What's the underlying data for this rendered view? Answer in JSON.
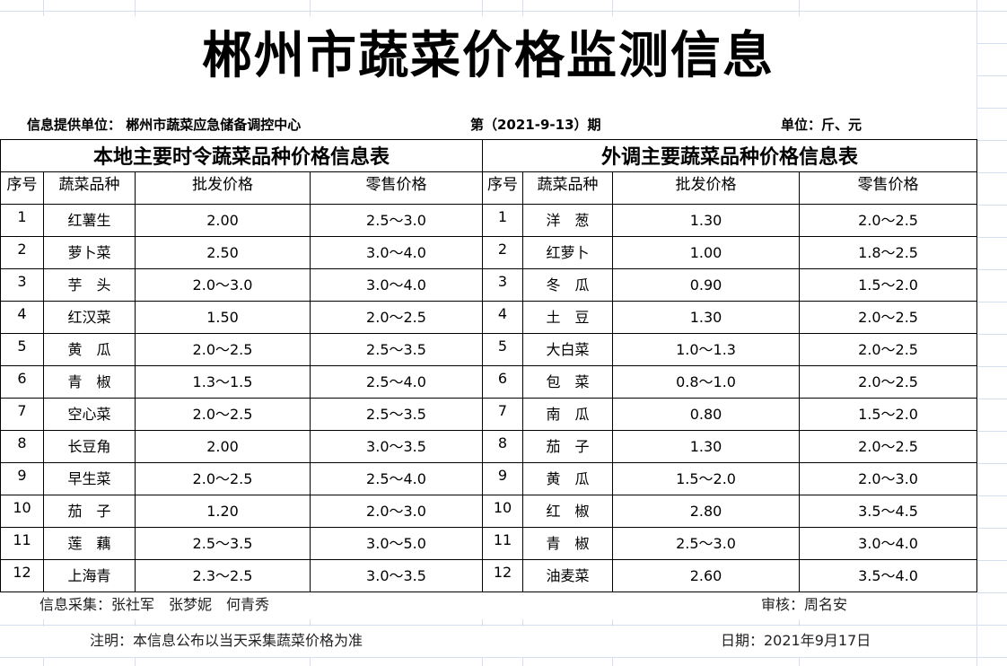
{
  "title": "郴州市蔬菜价格监测信息",
  "info": {
    "provider": "信息提供单位：  郴州市蔬菜应急储备调控中心",
    "period": "第（2021-9-13）期",
    "unit": "单位：斤、元"
  },
  "local": {
    "title": "本地主要时令蔬菜品种价格信息表",
    "headers": [
      "序号",
      "蔬菜品种",
      "批发价格",
      "零售价格"
    ],
    "rows": [
      [
        "1",
        "红薯生",
        "2.00",
        "2.5～3.0"
      ],
      [
        "2",
        "萝卜菜",
        "2.50",
        "3.0～4.0"
      ],
      [
        "3",
        "芋　头",
        "2.0～3.0",
        "3.0～4.0"
      ],
      [
        "4",
        "红汉菜",
        "1.50",
        "2.0～2.5"
      ],
      [
        "5",
        "黄　瓜",
        "2.0～2.5",
        "2.5～3.5"
      ],
      [
        "6",
        "青　椒",
        "1.3～1.5",
        "2.5～4.0"
      ],
      [
        "7",
        "空心菜",
        "2.0～2.5",
        "2.5～3.5"
      ],
      [
        "8",
        "长豆角",
        "2.00",
        "3.0～3.5"
      ],
      [
        "9",
        "早生菜",
        "2.0～2.5",
        "2.5～4.0"
      ],
      [
        "10",
        "茄　子",
        "1.20",
        "2.0～3.0"
      ],
      [
        "11",
        "莲　藕",
        "2.5～3.5",
        "3.0～5.0"
      ],
      [
        "12",
        "上海青",
        "2.3～2.5",
        "3.0～3.5"
      ]
    ]
  },
  "external": {
    "title": "外调主要蔬菜品种价格信息表",
    "headers": [
      "序号",
      "蔬菜品种",
      "批发价格",
      "零售价格"
    ],
    "rows": [
      [
        "1",
        "洋　葱",
        "1.30",
        "2.0～2.5"
      ],
      [
        "2",
        "红萝卜",
        "1.00",
        "1.8～2.5"
      ],
      [
        "3",
        "冬　瓜",
        "0.90",
        "1.5～2.0"
      ],
      [
        "4",
        "土　豆",
        "1.30",
        "2.0～2.5"
      ],
      [
        "5",
        "大白菜",
        "1.0～1.3",
        "2.0～2.5"
      ],
      [
        "6",
        "包　菜",
        "0.8～1.0",
        "2.0～2.5"
      ],
      [
        "7",
        "南　瓜",
        "0.80",
        "1.5～2.0"
      ],
      [
        "8",
        "茄　子",
        "1.30",
        "2.0～2.5"
      ],
      [
        "9",
        "黄　瓜",
        "1.5～2.0",
        "2.0～3.0"
      ],
      [
        "10",
        "红　椒",
        "2.80",
        "3.5～4.5"
      ],
      [
        "11",
        "青　椒",
        "2.5～3.0",
        "3.0～4.0"
      ],
      [
        "12",
        "油麦菜",
        "2.60",
        "3.5～4.0"
      ]
    ]
  },
  "footer": {
    "collectors": "信息采集：张社军　张梦妮　何青秀",
    "reviewer": "审核：周名安",
    "note": "注明：本信息公布以当天采集蔬菜价格为准",
    "date": "日期：2021年9月17日"
  }
}
